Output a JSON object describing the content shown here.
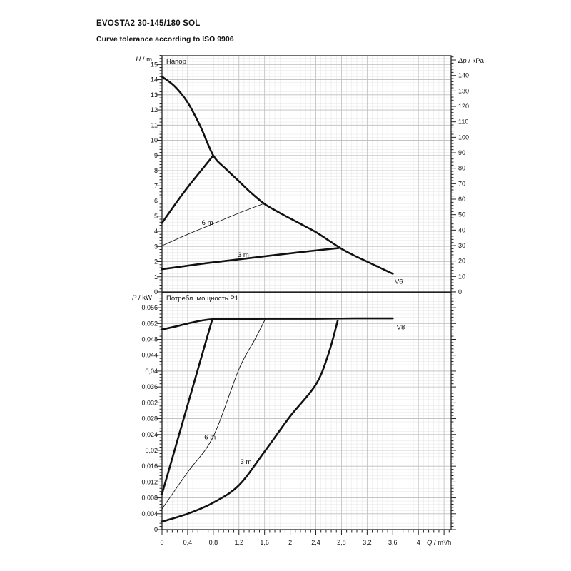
{
  "doc": {
    "title": "EVOSTA2 30-145/180 SOL",
    "subtitle": "Curve tolerance according to ISO 9906"
  },
  "colors": {
    "curve": "#111111",
    "grid_minor": "#e4e4e4",
    "grid_major": "#bdbdbd",
    "frame": "#222222"
  },
  "chart_data": [
    {
      "type": "line",
      "title": "Напор",
      "ylabel_left": "H / m",
      "ylabel_right": "Δp / kPa",
      "x_axis": {
        "min": 0,
        "max": 4.51,
        "major": 0.4,
        "minor": 0.08
      },
      "y_axis": {
        "min": 0,
        "max": 15.58,
        "major": 1,
        "minor": 0.2,
        "labels": [
          {
            "v": 0,
            "t": "0"
          },
          {
            "v": 1,
            "t": "1"
          },
          {
            "v": 2,
            "t": "2"
          },
          {
            "v": 3,
            "t": "3"
          },
          {
            "v": 4,
            "t": "4"
          },
          {
            "v": 5,
            "t": "5"
          },
          {
            "v": 6,
            "t": "6"
          },
          {
            "v": 7,
            "t": "7"
          },
          {
            "v": 8,
            "t": "8"
          },
          {
            "v": 9,
            "t": "9"
          },
          {
            "v": 10,
            "t": "10"
          },
          {
            "v": 11,
            "t": "11"
          },
          {
            "v": 12,
            "t": "12"
          },
          {
            "v": 13,
            "t": "13"
          },
          {
            "v": 14,
            "t": "14"
          },
          {
            "v": 15,
            "t": "15"
          }
        ]
      },
      "y_axis_right": {
        "kpa_per_m": 9.80665,
        "major": 10,
        "minor": 2,
        "labels": [
          {
            "v": 0,
            "t": "0"
          },
          {
            "v": 10,
            "t": "10"
          },
          {
            "v": 20,
            "t": "20"
          },
          {
            "v": 30,
            "t": "30"
          },
          {
            "v": 40,
            "t": "40"
          },
          {
            "v": 50,
            "t": "50"
          },
          {
            "v": 60,
            "t": "60"
          },
          {
            "v": 70,
            "t": "70"
          },
          {
            "v": 80,
            "t": "80"
          },
          {
            "v": 90,
            "t": "90"
          },
          {
            "v": 100,
            "t": "100"
          },
          {
            "v": 110,
            "t": "110"
          },
          {
            "v": 120,
            "t": "120"
          },
          {
            "v": 130,
            "t": "130"
          },
          {
            "v": 140,
            "t": "140"
          }
        ]
      },
      "series": [
        {
          "name": "head-max-curve",
          "w": 2.6,
          "smooth": true,
          "points": [
            [
              0,
              14.2
            ],
            [
              0.2,
              13.55
            ],
            [
              0.4,
              12.5
            ],
            [
              0.6,
              10.9
            ],
            [
              0.8,
              9.0
            ],
            [
              1.0,
              8.1
            ],
            [
              1.2,
              7.3
            ],
            [
              1.4,
              6.5
            ],
            [
              1.6,
              5.8
            ],
            [
              1.8,
              5.3
            ],
            [
              2.0,
              4.85
            ],
            [
              2.2,
              4.4
            ],
            [
              2.4,
              3.95
            ],
            [
              2.6,
              3.4
            ],
            [
              2.8,
              2.85
            ],
            [
              3.0,
              2.4
            ],
            [
              3.2,
              2.0
            ],
            [
              3.4,
              1.6
            ],
            [
              3.6,
              1.2
            ]
          ]
        },
        {
          "name": "head-min-curve",
          "w": 2.6,
          "smooth": true,
          "points": [
            [
              0,
              4.55
            ],
            [
              0.2,
              5.75
            ],
            [
              0.4,
              6.9
            ],
            [
              0.6,
              7.95
            ],
            [
              0.8,
              9.0
            ]
          ]
        },
        {
          "name": "head-6m-curve",
          "w": 0.9,
          "smooth": true,
          "points": [
            [
              0,
              3.05
            ],
            [
              0.4,
              3.8
            ],
            [
              0.8,
              4.5
            ],
            [
              1.2,
              5.2
            ],
            [
              1.6,
              5.85
            ]
          ]
        },
        {
          "name": "head-3m-curve",
          "w": 2.6,
          "smooth": true,
          "points": [
            [
              0,
              1.5
            ],
            [
              0.7,
              1.9
            ],
            [
              1.4,
              2.25
            ],
            [
              2.1,
              2.6
            ],
            [
              2.76,
              2.9
            ]
          ]
        }
      ],
      "annotations": [
        {
          "t": "6 m",
          "x": 0.62,
          "y": 4.42
        },
        {
          "t": "3 m",
          "x": 1.18,
          "y": 2.3
        },
        {
          "t": "V6",
          "x": 3.63,
          "y": 0.55
        }
      ]
    },
    {
      "type": "line",
      "title": "Потребл. мощность P1",
      "ylabel_left": "P / kW",
      "xlabel": "Q / m³/h",
      "right_ticks": true,
      "x_axis": {
        "min": 0,
        "max": 4.51,
        "major": 0.4,
        "minor": 0.08,
        "labels": [
          {
            "v": 0,
            "t": "0"
          },
          {
            "v": 0.4,
            "t": "0,4"
          },
          {
            "v": 0.8,
            "t": "0,8"
          },
          {
            "v": 1.2,
            "t": "1,2"
          },
          {
            "v": 1.6,
            "t": "1,6"
          },
          {
            "v": 2,
            "t": "2"
          },
          {
            "v": 2.4,
            "t": "2,4"
          },
          {
            "v": 2.8,
            "t": "2,8"
          },
          {
            "v": 3.2,
            "t": "3,2"
          },
          {
            "v": 3.6,
            "t": "3,6"
          },
          {
            "v": 4,
            "t": "4"
          }
        ]
      },
      "y_axis": {
        "min": 0,
        "max": 0.0598,
        "major": 0.004,
        "minor": 0.0008,
        "labels": [
          {
            "v": 0,
            "t": "0"
          },
          {
            "v": 0.004,
            "t": "0,004"
          },
          {
            "v": 0.008,
            "t": "0,008"
          },
          {
            "v": 0.012,
            "t": "0,012"
          },
          {
            "v": 0.016,
            "t": "0,016"
          },
          {
            "v": 0.02,
            "t": "0,02"
          },
          {
            "v": 0.024,
            "t": "0,024"
          },
          {
            "v": 0.028,
            "t": "0,028"
          },
          {
            "v": 0.032,
            "t": "0,032"
          },
          {
            "v": 0.036,
            "t": "0,036"
          },
          {
            "v": 0.04,
            "t": "0,04"
          },
          {
            "v": 0.044,
            "t": "0,044"
          },
          {
            "v": 0.048,
            "t": "0,048"
          },
          {
            "v": 0.052,
            "t": "0,052"
          },
          {
            "v": 0.056,
            "t": "0,056"
          }
        ]
      },
      "series": [
        {
          "name": "power-max-curve",
          "w": 2.6,
          "smooth": true,
          "points": [
            [
              0,
              0.0505
            ],
            [
              0.2,
              0.0512
            ],
            [
              0.4,
              0.052
            ],
            [
              0.6,
              0.0527
            ],
            [
              0.8,
              0.0531
            ],
            [
              1.2,
              0.0531
            ],
            [
              1.6,
              0.0532
            ],
            [
              2.4,
              0.0532
            ],
            [
              3.0,
              0.0533
            ],
            [
              3.6,
              0.0533
            ]
          ]
        },
        {
          "name": "power-min-curve",
          "w": 2.6,
          "smooth": false,
          "points": [
            [
              0,
              0.009
            ],
            [
              0.78,
              0.0528
            ]
          ]
        },
        {
          "name": "power-6m-curve",
          "w": 0.9,
          "smooth": true,
          "points": [
            [
              0,
              0.0052
            ],
            [
              0.4,
              0.0145
            ],
            [
              0.8,
              0.0235
            ],
            [
              1.2,
              0.0405
            ],
            [
              1.45,
              0.048
            ],
            [
              1.61,
              0.0531
            ]
          ]
        },
        {
          "name": "power-3m-curve",
          "w": 2.6,
          "smooth": true,
          "points": [
            [
              0,
              0.002
            ],
            [
              0.4,
              0.004
            ],
            [
              0.8,
              0.0068
            ],
            [
              1.2,
              0.0112
            ],
            [
              1.6,
              0.0197
            ],
            [
              2.0,
              0.0286
            ],
            [
              2.4,
              0.0366
            ],
            [
              2.6,
              0.0445
            ],
            [
              2.74,
              0.0527
            ]
          ]
        }
      ],
      "annotations": [
        {
          "t": "6 m",
          "x": 0.66,
          "y": 0.0228
        },
        {
          "t": "3 m",
          "x": 1.22,
          "y": 0.0166
        },
        {
          "t": "V8",
          "x": 3.66,
          "y": 0.0505
        }
      ]
    }
  ]
}
